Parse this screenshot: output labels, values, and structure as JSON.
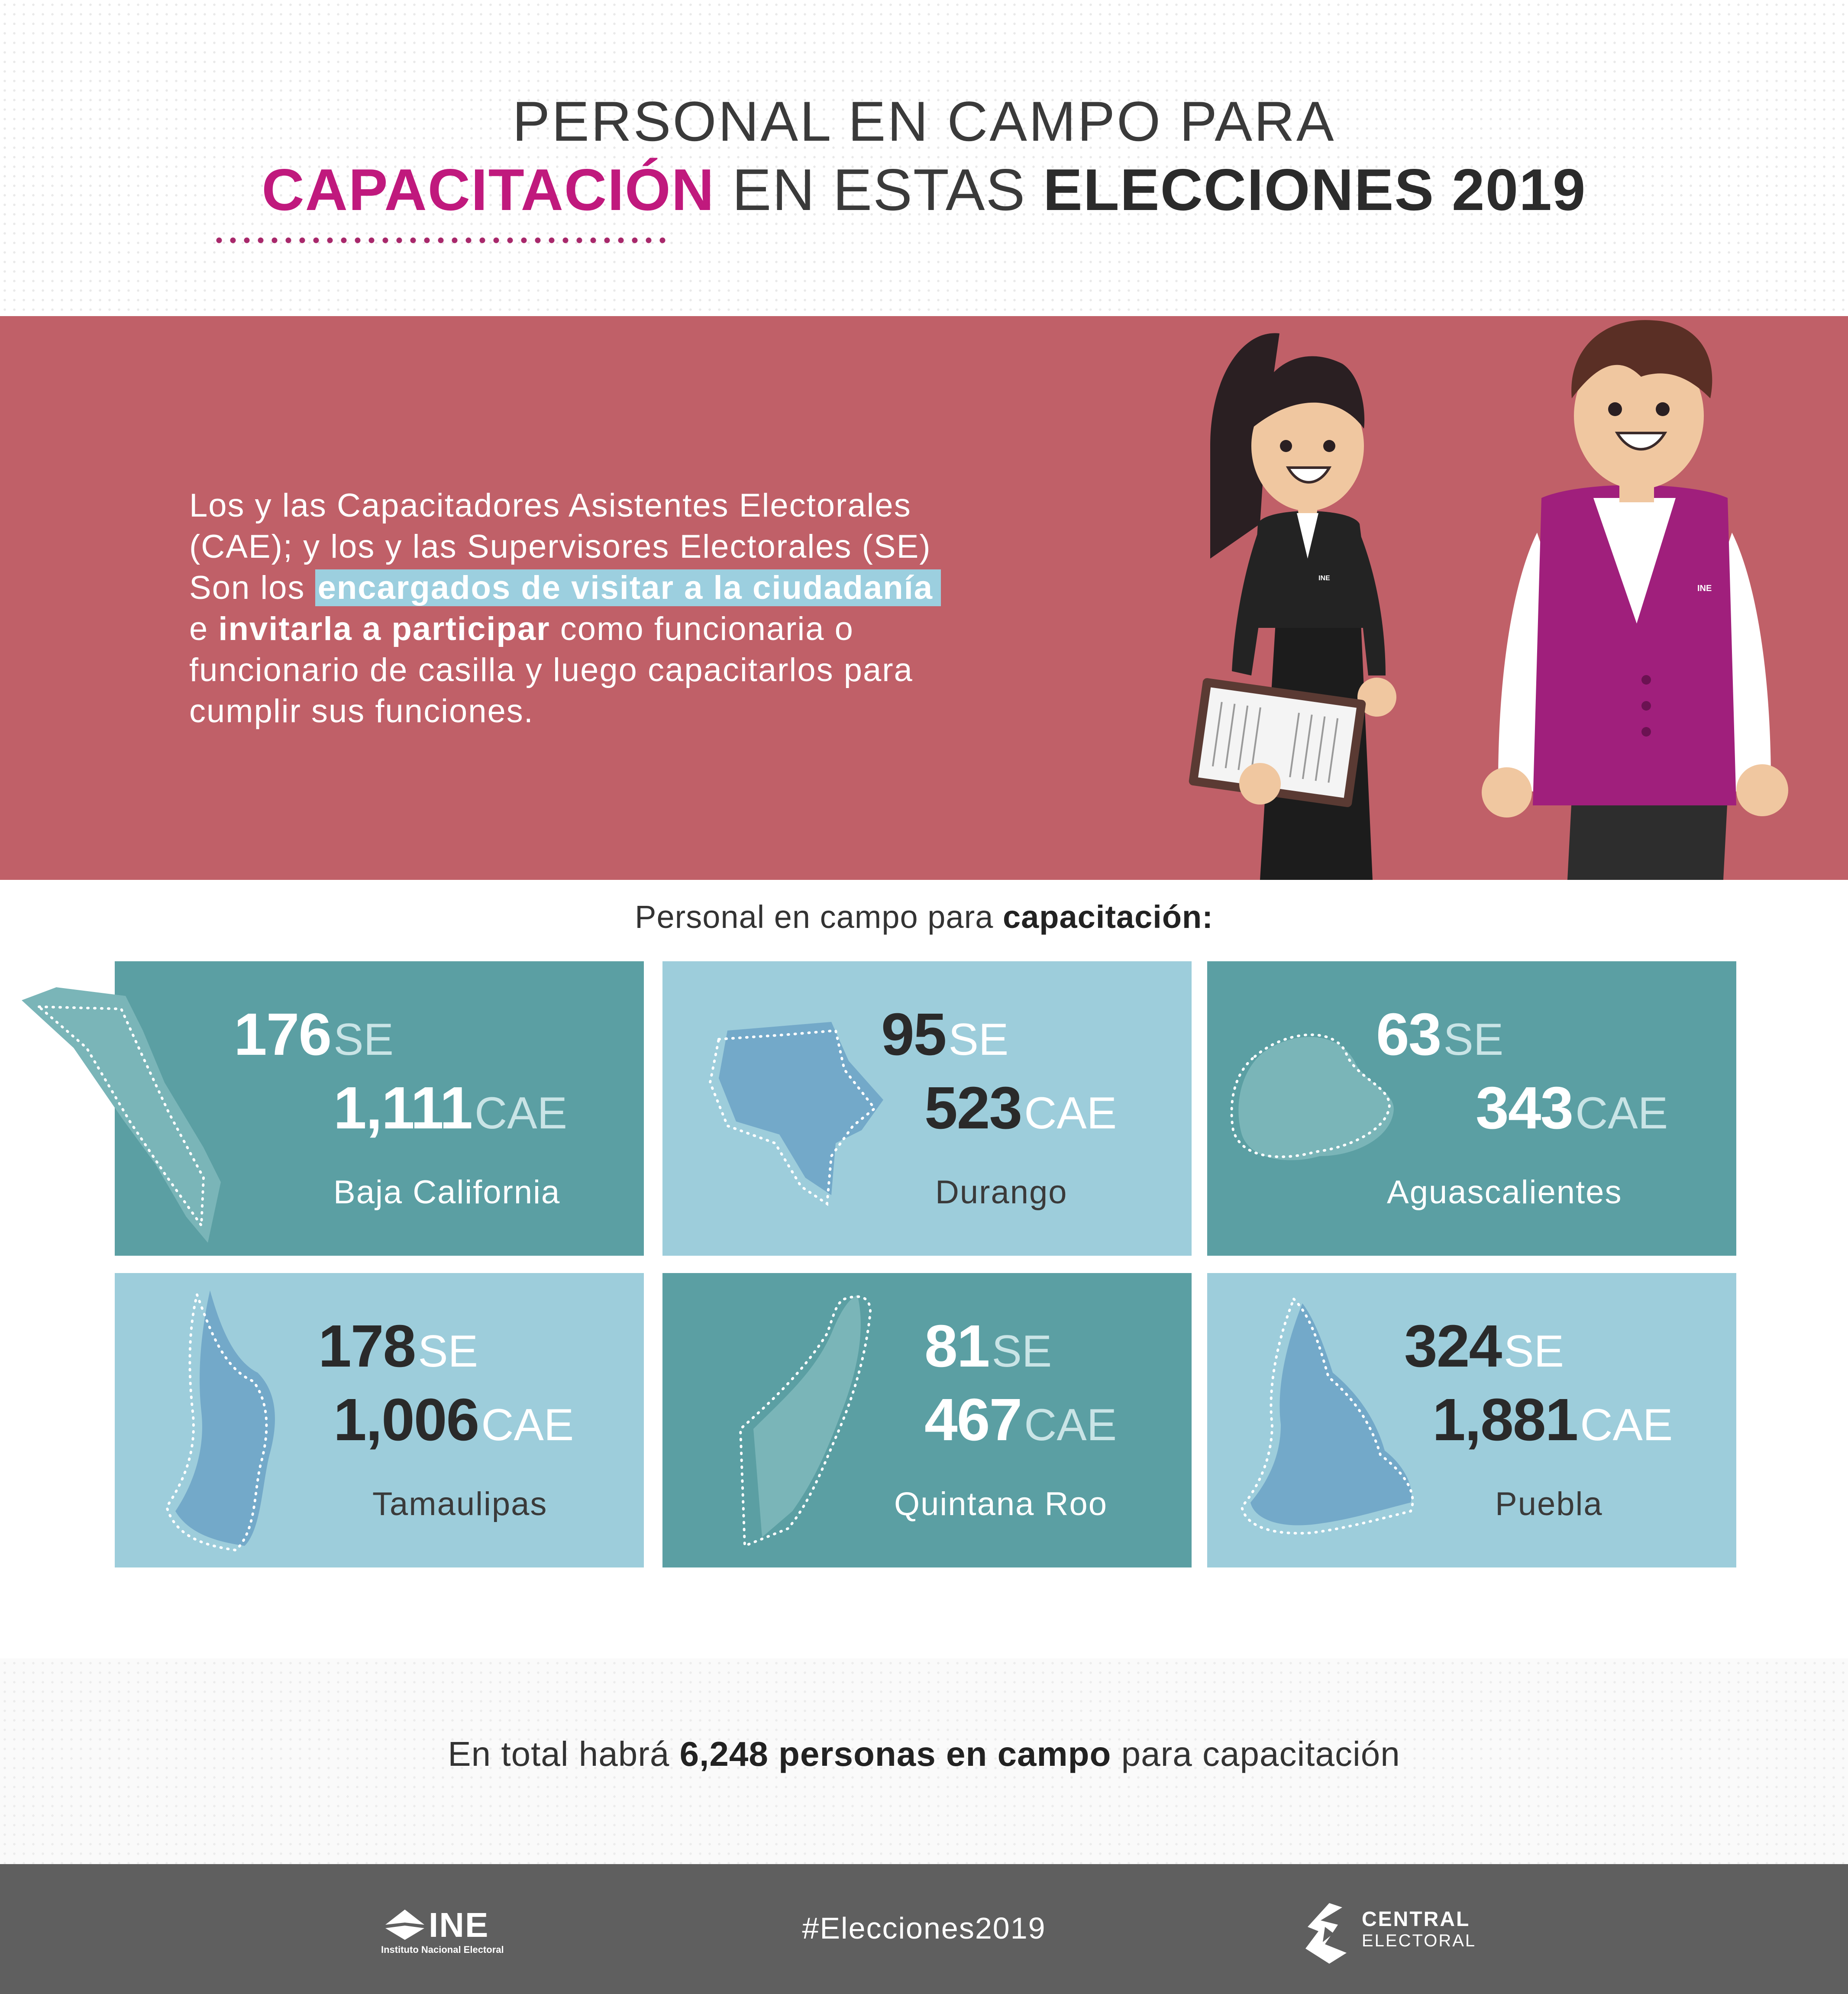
{
  "header": {
    "line1": "PERSONAL EN CAMPO PARA",
    "line2_highlight": "CAPACITACIÓN",
    "line2_mid": " EN ESTAS ",
    "line2_bold": "ELECCIONES 2019"
  },
  "hero": {
    "line1": "Los y las Capacitadores Asistentes Electorales",
    "line2": "(CAE); y los y las Supervisores Electorales (SE)",
    "line3_pre": "Son los ",
    "line3_highlight": "encargados de visitar a la ciudadanía",
    "line4_pre": "e ",
    "line4_bold": "invitarla a participar",
    "line4_post": " como funcionaria o",
    "line5": "funcionario de casilla y luego capacitarlos para",
    "line6": "cumplir sus funciones.",
    "badge_woman": "INE",
    "badge_man": "INE"
  },
  "section": {
    "subtitle_pre": "Personal en campo para ",
    "subtitle_bold": "capacitación:"
  },
  "cards": [
    {
      "state": "Baja California",
      "se": "176",
      "se_unit": "SE",
      "cae": "1,111",
      "cae_unit": "CAE"
    },
    {
      "state": "Durango",
      "se": "95",
      "se_unit": "SE",
      "cae": "523",
      "cae_unit": "CAE"
    },
    {
      "state": "Aguascalientes",
      "se": "63",
      "se_unit": "SE",
      "cae": "343",
      "cae_unit": "CAE"
    },
    {
      "state": "Tamaulipas",
      "se": "178",
      "se_unit": "SE",
      "cae": "1,006",
      "cae_unit": "CAE"
    },
    {
      "state": "Quintana Roo",
      "se": "81",
      "se_unit": "SE",
      "cae": "467",
      "cae_unit": "CAE"
    },
    {
      "state": "Puebla",
      "se": "324",
      "se_unit": "SE",
      "cae": "1,881",
      "cae_unit": "CAE"
    }
  ],
  "total": {
    "pre": "En total habrá ",
    "bold": "6,248 personas en campo",
    "post": " para capacitación"
  },
  "footer": {
    "ine_word": "INE",
    "ine_sub": "Instituto Nacional Electoral",
    "hashtag": "#Elecciones2019",
    "ce_word1": "CENTRAL",
    "ce_word2": "ELECTORAL"
  },
  "colors": {
    "accent_pink": "#c0197d",
    "hero_bg": "#c06068",
    "card_dark": "#5b9fa3",
    "card_light": "#9dcddb",
    "highlight": "#9ccfdf",
    "footer_bg": "#5f5f5f"
  }
}
